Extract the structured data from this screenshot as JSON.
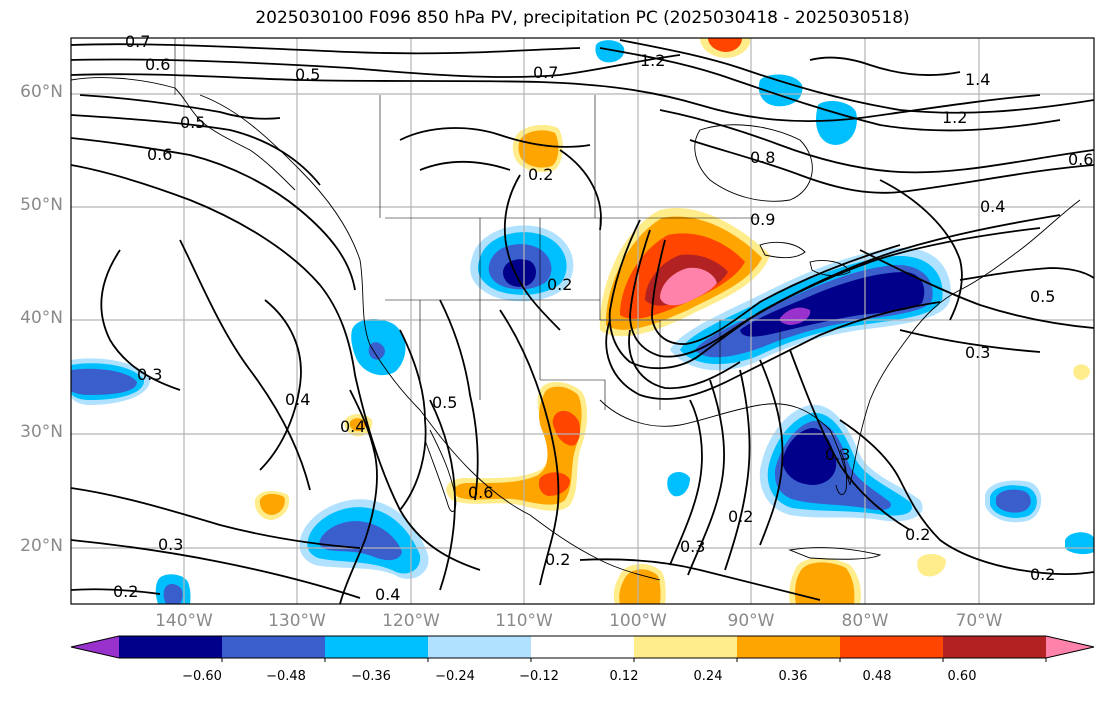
{
  "title": "2025030100 F096 850 hPa PV, precipitation PC (2025030418 - 2025030518)",
  "lat_labels": [
    "60°N",
    "50°N",
    "40°N",
    "30°N",
    "20°N"
  ],
  "lon_labels": [
    "140°W",
    "130°W",
    "120°W",
    "110°W",
    "100°W",
    "90°W",
    "80°W",
    "70°W"
  ],
  "colorbar": {
    "colors": [
      "#9932CC",
      "#00008B",
      "#3A5FCD",
      "#00BFFF",
      "#B0E2FF",
      "#FFFFFF",
      "#FFEC8B",
      "#FFA500",
      "#FF4500",
      "#B22222",
      "#FF82AB"
    ],
    "tick_labels": [
      "−0.60",
      "−0.48",
      "−0.36",
      "−0.24",
      "−0.12",
      "0.12",
      "0.24",
      "0.36",
      "0.48",
      "0.60"
    ]
  },
  "contour_labels": [
    "0.7",
    "0.6",
    "0.5",
    "0.7",
    "0.6",
    "0.5",
    "1.2",
    "1.4",
    "1.2",
    "0.6",
    "0.8",
    "0.9",
    "0.4",
    "0.5",
    "0.3",
    "0.3",
    "0.4",
    "0.4",
    "0.5",
    "0.6",
    "0.3",
    "0.2",
    "0.2",
    "0.3",
    "0.2",
    "0.2",
    "0.4",
    "0.2",
    "0.2",
    "0.3",
    "0.2"
  ]
}
